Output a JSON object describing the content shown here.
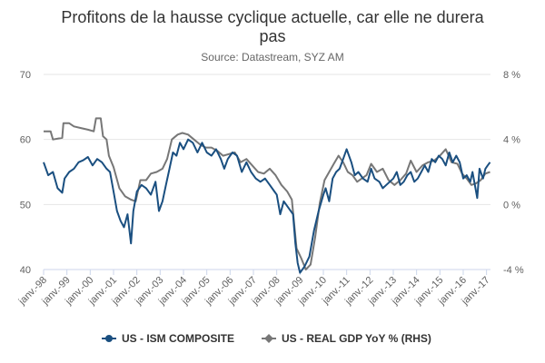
{
  "chart_data": {
    "type": "line",
    "title_lines": [
      "Profitons de la hausse cyclique actuelle, car elle ne durera",
      "pas"
    ],
    "subtitle": "Source: Datastream, SYZ AM",
    "x_ticks": [
      "janv.-98",
      "janv.-99",
      "janv.-00",
      "janv.-01",
      "janv.-02",
      "janv.-03",
      "janv.-04",
      "janv.-05",
      "janv.-06",
      "janv.-07",
      "janv.-08",
      "janv.-09",
      "janv.-10",
      "janv.-11",
      "janv.-12",
      "janv.-13",
      "janv.-14",
      "janv.-15",
      "janv.-16",
      "janv.-17"
    ],
    "xlim": [
      1998.0,
      2017.17
    ],
    "left_axis": {
      "ticks": [
        "40",
        "50",
        "60",
        "70"
      ],
      "ylim": [
        40,
        70
      ]
    },
    "right_axis": {
      "ticks": [
        "-4 %",
        "0 %",
        "4 %",
        "8 %"
      ],
      "ylim": [
        -4,
        8
      ]
    },
    "grid": true,
    "legend_position": "bottom",
    "series": [
      {
        "name": "US - ISM COMPOSITE",
        "axis": "left",
        "color": "#1a4f80",
        "points": [
          [
            1998.0,
            56.5
          ],
          [
            1998.2,
            54.5
          ],
          [
            1998.4,
            55.0
          ],
          [
            1998.6,
            52.5
          ],
          [
            1998.8,
            51.8
          ],
          [
            1998.9,
            54.0
          ],
          [
            1999.1,
            55.0
          ],
          [
            1999.3,
            55.5
          ],
          [
            1999.5,
            56.5
          ],
          [
            1999.7,
            56.8
          ],
          [
            1999.9,
            57.3
          ],
          [
            2000.1,
            56.0
          ],
          [
            2000.3,
            57.0
          ],
          [
            2000.5,
            56.5
          ],
          [
            2000.7,
            55.5
          ],
          [
            2000.85,
            55.0
          ],
          [
            2001.0,
            52.0
          ],
          [
            2001.15,
            49.0
          ],
          [
            2001.3,
            47.5
          ],
          [
            2001.45,
            46.5
          ],
          [
            2001.6,
            48.5
          ],
          [
            2001.75,
            44.0
          ],
          [
            2001.85,
            49.0
          ],
          [
            2002.0,
            52.0
          ],
          [
            2002.2,
            53.0
          ],
          [
            2002.4,
            52.5
          ],
          [
            2002.6,
            51.5
          ],
          [
            2002.8,
            53.5
          ],
          [
            2002.95,
            49.0
          ],
          [
            2003.1,
            50.5
          ],
          [
            2003.25,
            53.0
          ],
          [
            2003.4,
            55.5
          ],
          [
            2003.55,
            58.0
          ],
          [
            2003.7,
            57.5
          ],
          [
            2003.85,
            59.5
          ],
          [
            2004.0,
            58.5
          ],
          [
            2004.2,
            60.0
          ],
          [
            2004.4,
            59.5
          ],
          [
            2004.6,
            58.0
          ],
          [
            2004.8,
            59.5
          ],
          [
            2005.0,
            58.0
          ],
          [
            2005.2,
            57.5
          ],
          [
            2005.4,
            58.5
          ],
          [
            2005.6,
            57.0
          ],
          [
            2005.75,
            55.5
          ],
          [
            2005.9,
            57.0
          ],
          [
            2006.1,
            58.0
          ],
          [
            2006.3,
            57.5
          ],
          [
            2006.5,
            55.0
          ],
          [
            2006.7,
            56.5
          ],
          [
            2006.9,
            55.0
          ],
          [
            2007.1,
            54.0
          ],
          [
            2007.3,
            53.5
          ],
          [
            2007.5,
            54.0
          ],
          [
            2007.7,
            53.0
          ],
          [
            2007.9,
            52.0
          ],
          [
            2008.0,
            51.5
          ],
          [
            2008.15,
            48.5
          ],
          [
            2008.3,
            50.5
          ],
          [
            2008.5,
            49.5
          ],
          [
            2008.7,
            48.5
          ],
          [
            2008.8,
            44.0
          ],
          [
            2008.9,
            41.0
          ],
          [
            2009.0,
            39.5
          ],
          [
            2009.2,
            40.5
          ],
          [
            2009.4,
            42.0
          ],
          [
            2009.6,
            46.0
          ],
          [
            2009.8,
            49.0
          ],
          [
            2010.0,
            51.5
          ],
          [
            2010.1,
            52.5
          ],
          [
            2010.25,
            50.5
          ],
          [
            2010.4,
            54.0
          ],
          [
            2010.55,
            55.0
          ],
          [
            2010.7,
            55.5
          ],
          [
            2010.85,
            57.0
          ],
          [
            2011.0,
            58.5
          ],
          [
            2011.2,
            56.5
          ],
          [
            2011.35,
            54.5
          ],
          [
            2011.5,
            55.0
          ],
          [
            2011.7,
            54.0
          ],
          [
            2011.9,
            53.5
          ],
          [
            2012.05,
            55.5
          ],
          [
            2012.2,
            54.0
          ],
          [
            2012.4,
            53.5
          ],
          [
            2012.55,
            52.5
          ],
          [
            2012.7,
            53.0
          ],
          [
            2012.85,
            53.5
          ],
          [
            2013.0,
            54.0
          ],
          [
            2013.15,
            55.0
          ],
          [
            2013.3,
            53.0
          ],
          [
            2013.45,
            53.5
          ],
          [
            2013.6,
            54.5
          ],
          [
            2013.75,
            55.0
          ],
          [
            2013.9,
            53.5
          ],
          [
            2014.05,
            54.0
          ],
          [
            2014.2,
            55.0
          ],
          [
            2014.35,
            56.0
          ],
          [
            2014.5,
            55.0
          ],
          [
            2014.65,
            57.0
          ],
          [
            2014.8,
            56.5
          ],
          [
            2014.95,
            57.5
          ],
          [
            2015.1,
            57.0
          ],
          [
            2015.25,
            56.0
          ],
          [
            2015.4,
            58.0
          ],
          [
            2015.55,
            56.5
          ],
          [
            2015.7,
            57.5
          ],
          [
            2015.85,
            56.5
          ],
          [
            2016.0,
            54.0
          ],
          [
            2016.15,
            54.5
          ],
          [
            2016.3,
            53.5
          ],
          [
            2016.4,
            55.0
          ],
          [
            2016.5,
            53.0
          ],
          [
            2016.6,
            51.0
          ],
          [
            2016.7,
            55.5
          ],
          [
            2016.85,
            54.0
          ],
          [
            2016.95,
            55.5
          ],
          [
            2017.05,
            56.0
          ],
          [
            2017.15,
            56.5
          ]
        ]
      },
      {
        "name": "US - REAL GDP YoY % (RHS)",
        "axis": "right",
        "color": "#777777",
        "points": [
          [
            1998.0,
            4.5
          ],
          [
            1998.3,
            4.5
          ],
          [
            1998.4,
            4.0
          ],
          [
            1998.8,
            4.1
          ],
          [
            1998.85,
            5.0
          ],
          [
            1999.1,
            5.0
          ],
          [
            1999.3,
            4.8
          ],
          [
            1999.6,
            4.7
          ],
          [
            1999.9,
            4.6
          ],
          [
            2000.15,
            4.5
          ],
          [
            2000.25,
            5.3
          ],
          [
            2000.45,
            5.3
          ],
          [
            2000.55,
            4.2
          ],
          [
            2000.7,
            4.0
          ],
          [
            2000.8,
            3.0
          ],
          [
            2001.0,
            2.3
          ],
          [
            2001.25,
            1.0
          ],
          [
            2001.5,
            0.5
          ],
          [
            2001.75,
            0.3
          ],
          [
            2001.95,
            0.2
          ],
          [
            2002.15,
            1.5
          ],
          [
            2002.4,
            1.5
          ],
          [
            2002.6,
            1.9
          ],
          [
            2002.85,
            2.0
          ],
          [
            2003.1,
            2.2
          ],
          [
            2003.3,
            2.8
          ],
          [
            2003.5,
            4.0
          ],
          [
            2003.75,
            4.3
          ],
          [
            2003.95,
            4.4
          ],
          [
            2004.2,
            4.3
          ],
          [
            2004.45,
            4.0
          ],
          [
            2004.7,
            3.7
          ],
          [
            2004.95,
            3.5
          ],
          [
            2005.2,
            3.5
          ],
          [
            2005.45,
            3.3
          ],
          [
            2005.7,
            3.0
          ],
          [
            2005.95,
            3.1
          ],
          [
            2006.2,
            3.2
          ],
          [
            2006.45,
            2.6
          ],
          [
            2006.7,
            2.8
          ],
          [
            2006.95,
            2.4
          ],
          [
            2007.2,
            2.0
          ],
          [
            2007.45,
            1.9
          ],
          [
            2007.7,
            2.2
          ],
          [
            2007.95,
            1.8
          ],
          [
            2008.2,
            1.2
          ],
          [
            2008.45,
            0.8
          ],
          [
            2008.65,
            0.3
          ],
          [
            2008.85,
            -2.7
          ],
          [
            2009.05,
            -3.3
          ],
          [
            2009.25,
            -4.0
          ],
          [
            2009.45,
            -3.7
          ],
          [
            2009.65,
            -2.0
          ],
          [
            2009.85,
            0.1
          ],
          [
            2010.05,
            1.5
          ],
          [
            2010.25,
            2.0
          ],
          [
            2010.45,
            2.5
          ],
          [
            2010.65,
            3.0
          ],
          [
            2010.85,
            2.6
          ],
          [
            2011.05,
            2.0
          ],
          [
            2011.25,
            1.8
          ],
          [
            2011.45,
            1.4
          ],
          [
            2011.65,
            1.6
          ],
          [
            2011.85,
            1.8
          ],
          [
            2012.05,
            2.5
          ],
          [
            2012.3,
            2.0
          ],
          [
            2012.55,
            2.2
          ],
          [
            2012.8,
            1.5
          ],
          [
            2013.05,
            1.2
          ],
          [
            2013.3,
            1.5
          ],
          [
            2013.55,
            1.9
          ],
          [
            2013.75,
            2.7
          ],
          [
            2014.0,
            2.0
          ],
          [
            2014.25,
            2.4
          ],
          [
            2014.5,
            2.6
          ],
          [
            2014.75,
            2.7
          ],
          [
            2015.0,
            3.0
          ],
          [
            2015.25,
            3.4
          ],
          [
            2015.5,
            2.6
          ],
          [
            2015.75,
            2.5
          ],
          [
            2015.95,
            1.9
          ],
          [
            2016.15,
            1.6
          ],
          [
            2016.35,
            1.2
          ],
          [
            2016.55,
            1.3
          ],
          [
            2016.75,
            1.5
          ],
          [
            2016.95,
            1.9
          ],
          [
            2017.15,
            2.0
          ]
        ]
      }
    ]
  }
}
